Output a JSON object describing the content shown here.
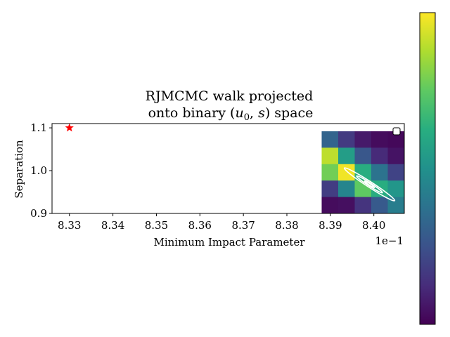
{
  "chart_data": {
    "type": "heatmap",
    "title_line1": "RJMCMC walk projected",
    "title_line2_prefix": "onto binary (",
    "title_line2_u": "u",
    "title_line2_sub": "0",
    "title_line2_sep": ", ",
    "title_line2_s": "s",
    "title_line2_suffix": ") space",
    "xlabel": "Minimum Impact Parameter",
    "ylabel": "Separation",
    "x_offset_text": "1e−1",
    "xlim": [
      8.326,
      8.407
    ],
    "ylim": [
      0.9,
      1.11
    ],
    "x_ticks": [
      8.33,
      8.34,
      8.35,
      8.36,
      8.37,
      8.38,
      8.39,
      8.4
    ],
    "x_tick_labels": [
      "8.33",
      "8.34",
      "8.35",
      "8.36",
      "8.37",
      "8.38",
      "8.39",
      "8.40"
    ],
    "y_ticks": [
      0.9,
      1.0,
      1.1
    ],
    "y_tick_labels": [
      "0.9",
      "1.0",
      "1.1"
    ],
    "colormap": "viridis",
    "heatmap": {
      "x_range": [
        8.388,
        8.407
      ],
      "y_range": [
        0.9,
        1.092
      ],
      "rows_top_to_bottom": [
        [
          0.32,
          0.17,
          0.07,
          0.03,
          0.02
        ],
        [
          0.9,
          0.55,
          0.27,
          0.12,
          0.05
        ],
        [
          0.78,
          0.98,
          0.62,
          0.38,
          0.2
        ],
        [
          0.18,
          0.45,
          0.75,
          0.62,
          0.52
        ],
        [
          0.03,
          0.04,
          0.15,
          0.28,
          0.42
        ]
      ]
    },
    "true_point": {
      "x": 8.33,
      "y": 1.1,
      "marker": "star",
      "color": "#ff0000"
    },
    "contour": {
      "center": [
        8.399,
        0.968
      ],
      "levels": [
        {
          "ux": 0.007,
          "vy": 0.0065
        },
        {
          "ux": 0.0036,
          "vy": 0.0036
        },
        {
          "ux": 0.0014,
          "vy": 0.0017
        }
      ],
      "color": "#ffffff"
    },
    "legend": {
      "position": "upper right",
      "entries": []
    },
    "colorbar": {
      "position": "right",
      "cmap": "viridis"
    }
  }
}
